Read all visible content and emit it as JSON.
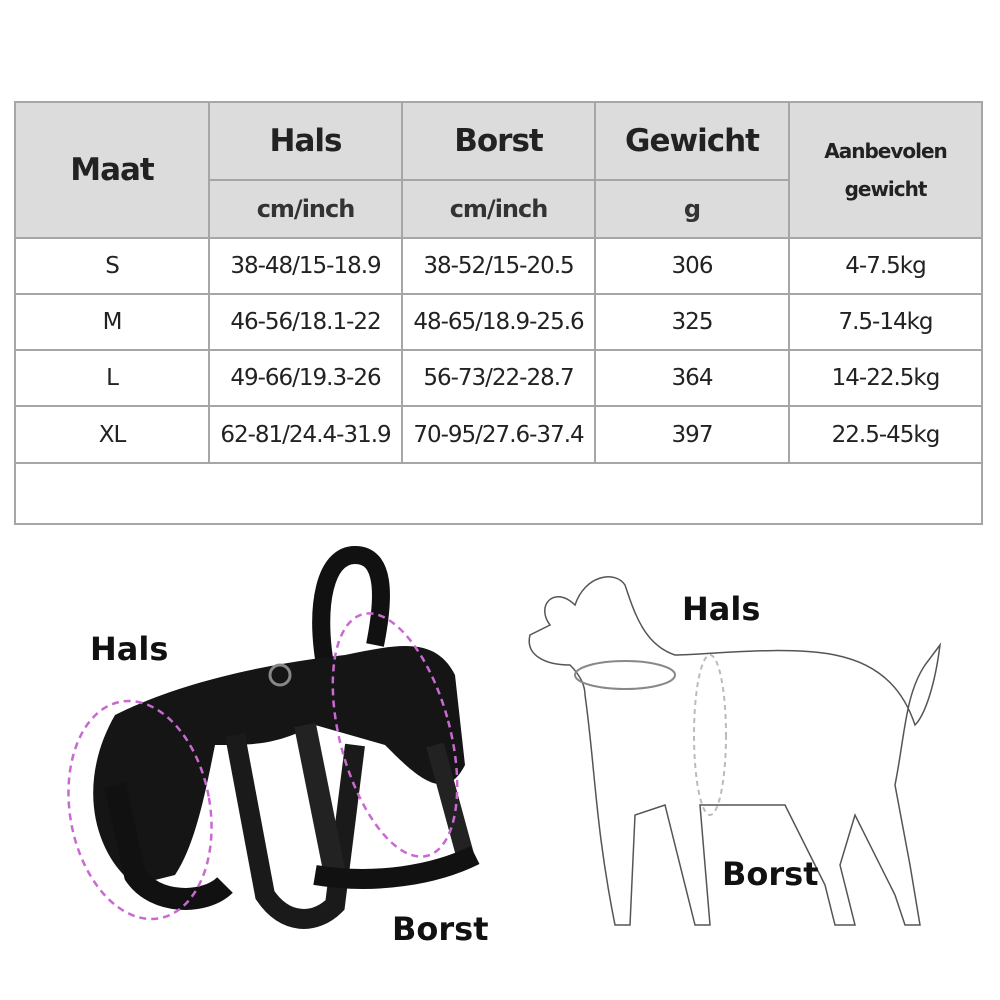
{
  "table": {
    "headers": {
      "size": "Maat",
      "neck": "Hals",
      "chest": "Borst",
      "weight": "Gewicht",
      "recommended_line1": "Aanbevolen",
      "recommended_line2": "gewicht",
      "neck_unit": "cm/inch",
      "chest_unit": "cm/inch",
      "weight_unit": "g"
    },
    "rows": [
      {
        "size": "S",
        "neck": "38-48/15-18.9",
        "chest": "38-52/15-20.5",
        "weight": "306",
        "recommended": "4-7.5kg"
      },
      {
        "size": "M",
        "neck": "46-56/18.1-22",
        "chest": "48-65/18.9-25.6",
        "weight": "325",
        "recommended": "7.5-14kg"
      },
      {
        "size": "L",
        "neck": "49-66/19.3-26",
        "chest": "56-73/22-28.7",
        "weight": "364",
        "recommended": "14-22.5kg"
      },
      {
        "size": "XL",
        "neck": "62-81/24.4-31.9",
        "chest": "70-95/27.6-37.4",
        "weight": "397",
        "recommended": "22.5-45kg"
      }
    ]
  },
  "harness_diagram": {
    "neck_label": "Hals",
    "chest_label": "Borst",
    "highlight_color": "#c86ad0"
  },
  "dog_diagram": {
    "neck_label": "Hals",
    "chest_label": "Borst"
  }
}
